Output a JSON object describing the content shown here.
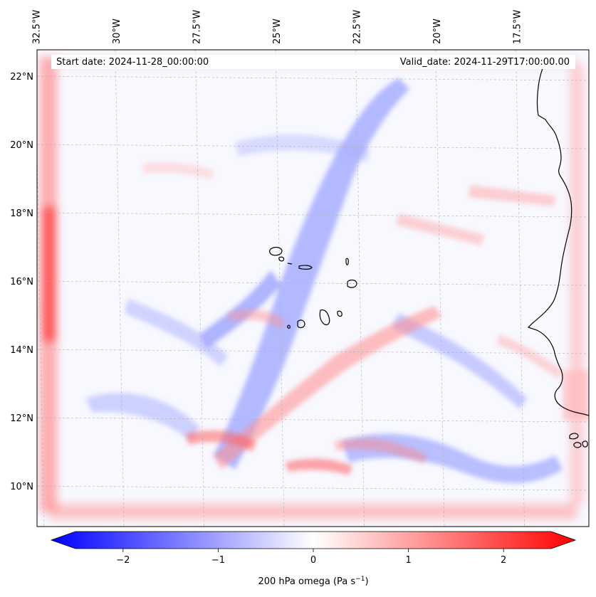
{
  "header": {
    "start_date": "Start date: 2024-11-28_00:00:00",
    "valid_date": "Valid_date: 2024-11-29T17:00:00.00"
  },
  "lon_ticks": [
    {
      "label": "32.5°W",
      "lon": -32.5
    },
    {
      "label": "30°W",
      "lon": -30
    },
    {
      "label": "27.5°W",
      "lon": -27.5
    },
    {
      "label": "25°W",
      "lon": -25
    },
    {
      "label": "22.5°W",
      "lon": -22.5
    },
    {
      "label": "20°W",
      "lon": -20
    },
    {
      "label": "17.5°W",
      "lon": -17.5
    }
  ],
  "lat_ticks": [
    {
      "label": "22°N",
      "lat": 22
    },
    {
      "label": "20°N",
      "lat": 20
    },
    {
      "label": "18°N",
      "lat": 18
    },
    {
      "label": "16°N",
      "lat": 16
    },
    {
      "label": "14°N",
      "lat": 14
    },
    {
      "label": "12°N",
      "lat": 12
    },
    {
      "label": "10°N",
      "lat": 10
    }
  ],
  "colorbar": {
    "title": "200 hPa omega (Pa s",
    "title_sup": "−1",
    "title_end": ")",
    "min": -2.75,
    "max": 2.75,
    "ticks": [
      {
        "value": -2,
        "label": "−2"
      },
      {
        "value": -1,
        "label": "−1"
      },
      {
        "value": 0,
        "label": "0"
      },
      {
        "value": 1,
        "label": "1"
      },
      {
        "value": 2,
        "label": "2"
      }
    ],
    "neg_color": "#0000ff",
    "zero_color": "#ffffff",
    "pos_color": "#ff0000"
  },
  "colors": {
    "positive": "#ff0000",
    "negative": "#0000ff",
    "coastline": "#000000",
    "gridline": "#b0b0b0"
  }
}
